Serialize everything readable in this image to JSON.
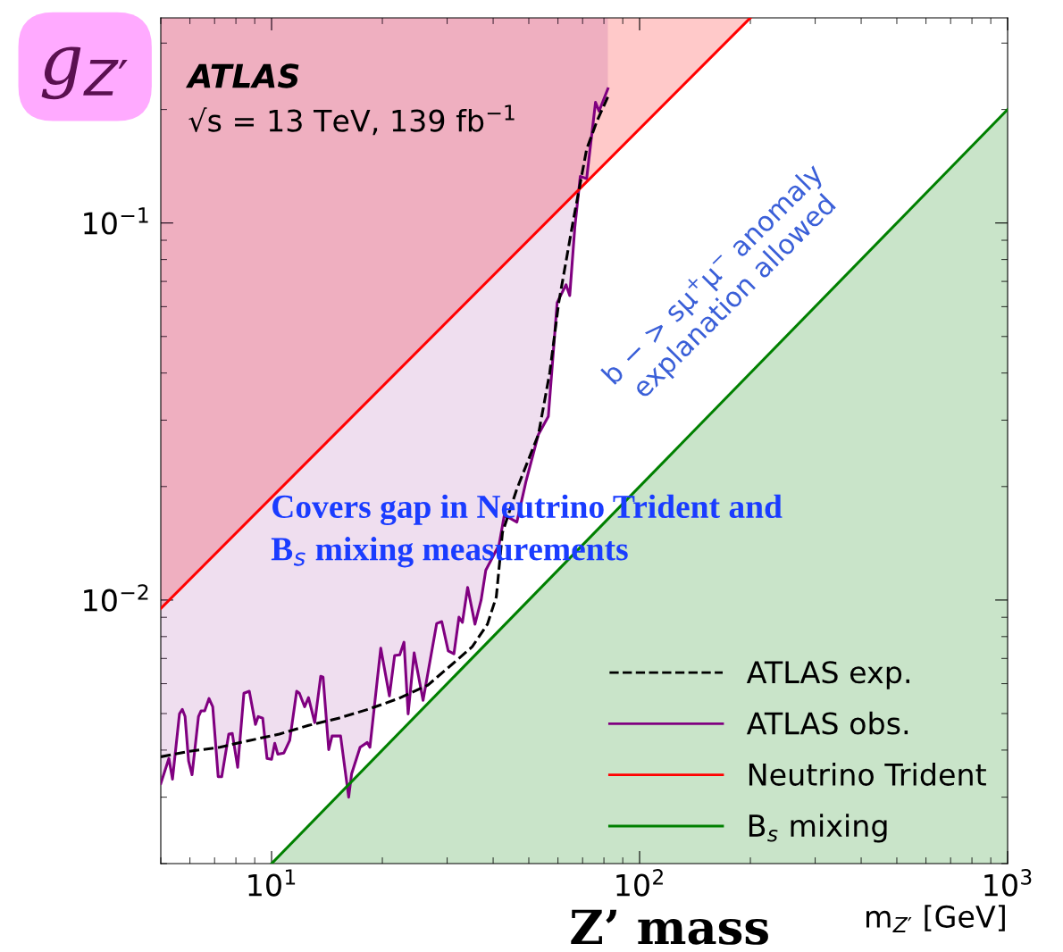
{
  "chart_data": {
    "type": "line",
    "xlabel": "m$_{Z′}$ [GeV]",
    "ylabel": "g$_{Z′}$",
    "log": "xy",
    "xlim": [
      5,
      1000
    ],
    "ylim": [
      0.002,
      0.35
    ],
    "xticks": [
      {
        "value": 10,
        "label": "10$^{1}$"
      },
      {
        "value": 100,
        "label": "10$^{2}$"
      },
      {
        "value": 1000,
        "label": "10$^{3}$"
      }
    ],
    "yticks": [
      {
        "value": 0.01,
        "label": "10$^{−2}$"
      },
      {
        "value": 0.1,
        "label": "10$^{−1}$"
      }
    ],
    "grid": false,
    "legend": "bottom right",
    "annotations": [
      "ATLAS",
      "√s = 13 TeV, 139 fb$^{−1}$",
      "b − > sμ$^{+}$μ$^{−}$ anomaly\nexplanation allowed",
      "Covers gap in Neutrino Trident and\nB$_{s}$ mixing measurements",
      "Z’ mass"
    ],
    "series": [
      {
        "name": "ATLAS exp.",
        "color": "#000000",
        "line_style": "dashed",
        "x": [
          5.0,
          5.98,
          7.23,
          8.7,
          10.5,
          12.6,
          15.2,
          18.3,
          22.1,
          26.6,
          31.9,
          35.1,
          38.6,
          40.8,
          42.4,
          46.4,
          53.1,
          57.0,
          60.3,
          65.9,
          71.8,
          76.7,
          82.0
        ],
        "values": [
          0.00384,
          0.00397,
          0.00407,
          0.00424,
          0.00441,
          0.00465,
          0.00486,
          0.00513,
          0.00548,
          0.00595,
          0.00693,
          0.00752,
          0.00863,
          0.0102,
          0.0151,
          0.0197,
          0.0275,
          0.0401,
          0.0615,
          0.1005,
          0.157,
          0.187,
          0.216
        ]
      },
      {
        "name": "ATLAS obs.",
        "color": "#800080",
        "line_style": "solid",
        "x": [
          5.0,
          5.26,
          5.38,
          5.62,
          5.72,
          5.82,
          5.95,
          6.08,
          6.33,
          6.43,
          6.58,
          6.76,
          6.92,
          7.16,
          7.32,
          7.65,
          7.82,
          8.09,
          8.41,
          8.7,
          9.04,
          9.2,
          9.46,
          9.72,
          10.0,
          10.2,
          10.4,
          10.8,
          11.2,
          11.7,
          11.9,
          12.3,
          12.6,
          13.1,
          13.6,
          13.8,
          14.3,
          14.6,
          15.4,
          16.2,
          16.5,
          17.4,
          18.2,
          18.5,
          19.8,
          20.9,
          21.6,
          22.3,
          22.9,
          23.5,
          24.4,
          25.8,
          26.9,
          28.1,
          29.0,
          30.2,
          31.3,
          32.3,
          33.0,
          34.1,
          35.7,
          37.1,
          38.2,
          41.5,
          42.9,
          46.4,
          49.1,
          53.1,
          56.5,
          59.7,
          63.1,
          64.6,
          66.7,
          69.0,
          71.8,
          75.9,
          77.6,
          82.0
        ],
        "values": [
          0.00326,
          0.0038,
          0.00335,
          0.00499,
          0.00513,
          0.00491,
          0.00374,
          0.00344,
          0.00491,
          0.00508,
          0.00508,
          0.00548,
          0.00521,
          0.0034,
          0.0034,
          0.00441,
          0.00443,
          0.0036,
          0.00566,
          0.00573,
          0.00468,
          0.00491,
          0.00486,
          0.0038,
          0.00378,
          0.00417,
          0.0039,
          0.00393,
          0.00424,
          0.00573,
          0.00566,
          0.00521,
          0.00551,
          0.00473,
          0.00628,
          0.00625,
          0.00401,
          0.00436,
          0.00436,
          0.003,
          0.00346,
          0.00407,
          0.00419,
          0.00407,
          0.00745,
          0.00557,
          0.00713,
          0.00716,
          0.00773,
          0.00499,
          0.00724,
          0.00542,
          0.00682,
          0.00867,
          0.00877,
          0.00733,
          0.0072,
          0.00901,
          0.00872,
          0.0108,
          0.00863,
          0.01,
          0.012,
          0.014,
          0.0168,
          0.0161,
          0.0206,
          0.0275,
          0.0307,
          0.0615,
          0.0686,
          0.0642,
          0.0977,
          0.133,
          0.131,
          0.209,
          0.198,
          0.227
        ],
        "lower": [
          0.00326,
          0.0038,
          0.00335,
          0.00499,
          0.00513,
          0.00491,
          0.00374,
          0.00344,
          0.00491,
          0.00508,
          0.00508,
          0.00548,
          0.00521,
          0.0034,
          0.0034,
          0.00441,
          0.00443,
          0.0036,
          0.00566,
          0.00573,
          0.00468,
          0.00491,
          0.00486,
          0.0038,
          0.00378,
          0.00417,
          0.0039,
          0.00393,
          0.00424,
          0.00573,
          0.00566,
          0.00521,
          0.00551,
          0.00473,
          0.00628,
          0.00625,
          0.00401,
          0.00436,
          0.00436,
          0.003,
          0.00346,
          0.00407,
          0.00419,
          0.00407,
          0.00745,
          0.00557,
          0.00713,
          0.00716,
          0.00773,
          0.00499,
          0.00724,
          0.00542,
          0.00682,
          0.00867,
          0.00877,
          0.00733,
          0.0072,
          0.00901,
          0.00872,
          0.0108,
          0.00863,
          0.01,
          0.012,
          0.014,
          0.0168,
          0.0161,
          0.0206,
          0.0275,
          0.0307,
          0.0615,
          0.0686,
          0.0642,
          0.0977,
          0.133,
          0.131,
          0.209,
          0.198,
          0.227
        ],
        "upper": [
          0.35,
          0.35,
          0.35,
          0.35,
          0.35,
          0.35,
          0.35,
          0.35,
          0.35,
          0.35,
          0.35,
          0.35,
          0.35,
          0.35,
          0.35,
          0.35,
          0.35,
          0.35,
          0.35,
          0.35,
          0.35,
          0.35,
          0.35,
          0.35,
          0.35,
          0.35,
          0.35,
          0.35,
          0.35,
          0.35,
          0.35,
          0.35,
          0.35,
          0.35,
          0.35,
          0.35,
          0.35,
          0.35,
          0.35,
          0.35,
          0.35,
          0.35,
          0.35,
          0.35,
          0.35,
          0.35,
          0.35,
          0.35,
          0.35,
          0.35,
          0.35,
          0.35,
          0.35,
          0.35,
          0.35,
          0.35,
          0.35,
          0.35,
          0.35,
          0.35,
          0.35,
          0.35,
          0.35,
          0.35,
          0.35,
          0.35,
          0.35,
          0.35,
          0.35,
          0.35,
          0.35,
          0.35,
          0.35,
          0.35,
          0.35,
          0.35,
          0.35,
          0.35
        ]
      },
      {
        "name": "Neutrino Trident",
        "color": "#ff0000",
        "line_style": "solid",
        "x": [
          5,
          200
        ],
        "values": [
          0.0095,
          0.35
        ],
        "lower": [
          0.0095,
          0.35
        ],
        "upper": [
          0.35,
          0.35
        ]
      },
      {
        "name": "B$_{s}$ mixing",
        "color": "#008000",
        "line_style": "solid",
        "x": [
          10,
          1000
        ],
        "values": [
          0.002,
          0.2
        ],
        "lower": [
          0.002,
          0.002
        ],
        "upper": [
          0.002,
          0.2
        ]
      }
    ]
  }
}
